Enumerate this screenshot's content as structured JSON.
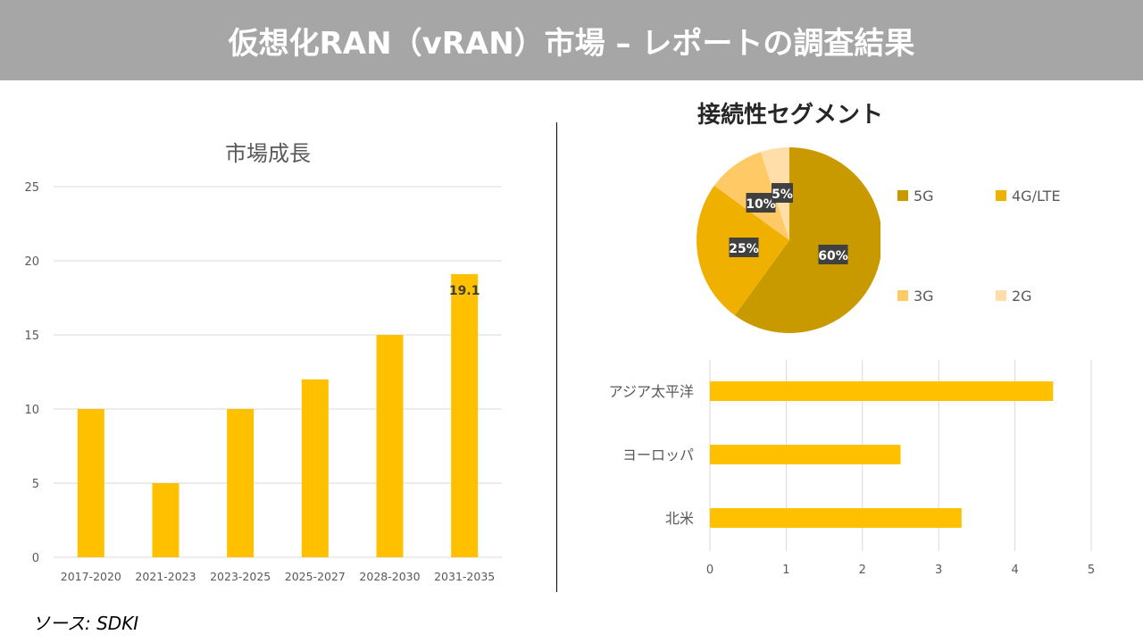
{
  "header": {
    "title": "仮想化RAN（vRAN）市場 – レポートの調査結果"
  },
  "source": "ソース: SDKI",
  "chart_data": [
    {
      "type": "bar",
      "title": "市場成長",
      "categories": [
        "2017-2020",
        "2021-2023",
        "2023-2025",
        "2025-2027",
        "2028-2030",
        "2031-2035"
      ],
      "values": [
        10,
        5,
        10,
        12,
        15,
        19.1
      ],
      "data_labels": {
        "5": "19.1"
      },
      "ylim": [
        0,
        25
      ],
      "yticks": [
        0,
        5,
        10,
        15,
        20,
        25
      ],
      "grid": true,
      "color": "#ffc000"
    },
    {
      "type": "pie",
      "title": "接続性セグメント",
      "categories": [
        "5G",
        "4G/LTE",
        "3G",
        "2G"
      ],
      "values": [
        60,
        25,
        10,
        5
      ],
      "labels": [
        "60%",
        "25%",
        "10%",
        "5%"
      ],
      "colors": [
        "#c99a00",
        "#f0b000",
        "#ffc966",
        "#ffdeaa"
      ],
      "legend": "right"
    },
    {
      "type": "bar",
      "orientation": "horizontal",
      "categories": [
        "アジア太平洋",
        "ヨーロッパ",
        "北米"
      ],
      "values": [
        4.5,
        2.5,
        3.3
      ],
      "xlim": [
        0,
        5
      ],
      "xticks": [
        0,
        1,
        2,
        3,
        4,
        5
      ],
      "grid": true,
      "color": "#ffc000"
    }
  ]
}
